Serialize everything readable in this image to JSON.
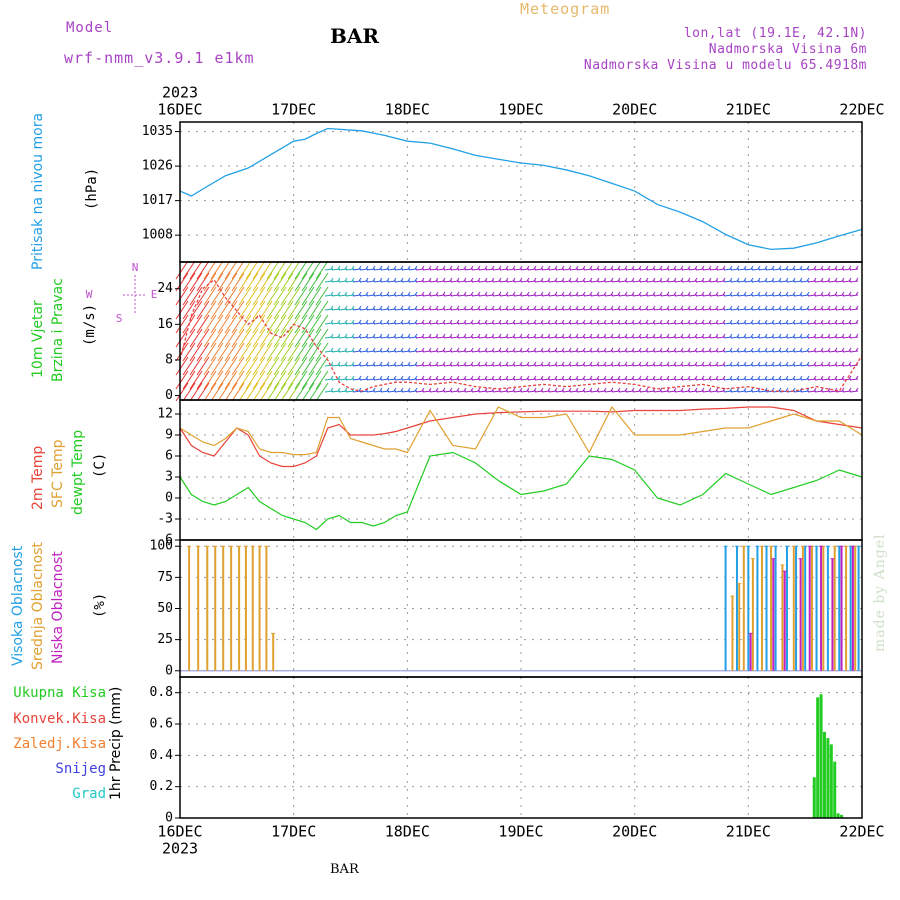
{
  "header": {
    "model_label": "Model",
    "model_name": "wrf-nmm_v3.9.1 e1km",
    "station": "BAR",
    "product": "Meteogram",
    "lonlat": "lon,lat (19.1E, 42.1N)",
    "elevation": "Nadmorska Visina 6m",
    "model_elevation": "Nadmorska Visina u modelu 65.4918m"
  },
  "footer_station": "BAR",
  "watermark": "made by Angel",
  "colors": {
    "pressure": "#22a0e6",
    "temp2m": "#e8443a",
    "sfc": "#e0a030",
    "dewpt": "#22cc22",
    "high_cloud": "#22a0e6",
    "mid_cloud": "#e0a030",
    "low_cloud": "#c020c0",
    "precip_total": "#22cc22",
    "precip_conv": "#e8443a",
    "precip_frz": "#f08030",
    "precip_snow": "#4040e0",
    "precip_grad": "#22c8c8",
    "wind_speed": "#c020c0"
  },
  "chart_data": [
    {
      "type": "line",
      "panel": "pressure",
      "ylabel_main": "Pritisak na nivou mora",
      "ylabel_unit": "(hPa)",
      "x_top_year": "2023",
      "x_bottom_year": "2023",
      "x_ticks": [
        "16DEC",
        "17DEC",
        "18DEC",
        "19DEC",
        "20DEC",
        "21DEC",
        "22DEC"
      ],
      "xlim_days": [
        0,
        6
      ],
      "ylim": [
        1001,
        1037.5
      ],
      "y_ticks": [
        1008,
        1017,
        1026,
        1035
      ],
      "series": [
        {
          "x": [
            0,
            0.1,
            0.2,
            0.4,
            0.6,
            0.8,
            1.0,
            1.1,
            1.2,
            1.3,
            1.4,
            1.5,
            1.6,
            1.8,
            2.0,
            2.2,
            2.4,
            2.6,
            2.8,
            3.0,
            3.2,
            3.4,
            3.6,
            3.8,
            4.0,
            4.2,
            4.4,
            4.6,
            4.8,
            5.0,
            5.2,
            5.4,
            5.6,
            5.8,
            6.0
          ],
          "y": [
            1019.5,
            1018.2,
            1020,
            1023.5,
            1025.5,
            1029,
            1032.5,
            1033,
            1034.5,
            1035.8,
            1035.6,
            1035.4,
            1035.2,
            1034,
            1032.5,
            1032,
            1030.5,
            1028.8,
            1027.8,
            1026.8,
            1026.2,
            1025,
            1023.5,
            1021.5,
            1019.5,
            1016,
            1014,
            1011.5,
            1008.2,
            1005.5,
            1004.3,
            1004.6,
            1006,
            1007.8,
            1009.5
          ]
        }
      ]
    },
    {
      "type": "line",
      "panel": "wind",
      "ylabel_main": "10m Vjetar",
      "ylabel_main2": "Brzina i Pravac",
      "ylabel_unit": "(m/s)",
      "compass": {
        "n": "N",
        "w": "W",
        "e": "E",
        "s": "S"
      },
      "ylim": [
        -1,
        30
      ],
      "y_ticks": [
        0,
        8,
        16,
        24
      ],
      "speed_x": [
        0,
        0.1,
        0.2,
        0.3,
        0.4,
        0.5,
        0.6,
        0.7,
        0.8,
        0.9,
        1.0,
        1.1,
        1.2,
        1.3,
        1.4,
        1.5,
        1.6,
        1.7,
        1.8,
        1.9,
        2.0,
        2.2,
        2.4,
        2.6,
        2.8,
        3.0,
        3.2,
        3.4,
        3.6,
        3.8,
        4.0,
        4.2,
        4.4,
        4.6,
        4.8,
        5.0,
        5.2,
        5.4,
        5.6,
        5.8,
        5.9,
        6.0
      ],
      "speed_y": [
        8,
        18,
        24,
        26,
        22,
        19,
        16,
        18,
        14,
        13,
        16,
        15,
        11,
        8,
        3,
        1.5,
        1,
        2,
        2.5,
        3,
        3,
        2.5,
        3,
        2,
        1.5,
        2,
        2.5,
        2,
        2.5,
        3,
        2.5,
        1.5,
        2,
        2.5,
        1.5,
        2,
        1,
        1,
        2,
        1,
        5,
        9
      ]
    },
    {
      "type": "line",
      "panel": "temperature",
      "ylabel_a": "2m Temp",
      "ylabel_b": "SFC Temp",
      "ylabel_c": "dewpt Temp",
      "ylabel_unit": "(C)",
      "ylim": [
        -6,
        14
      ],
      "y_ticks": [
        -6,
        -3,
        0,
        3,
        6,
        9,
        12
      ],
      "x": [
        0,
        0.1,
        0.2,
        0.3,
        0.4,
        0.5,
        0.6,
        0.7,
        0.8,
        0.9,
        1.0,
        1.1,
        1.2,
        1.3,
        1.4,
        1.5,
        1.6,
        1.7,
        1.8,
        1.9,
        2.0,
        2.2,
        2.4,
        2.6,
        2.8,
        3.0,
        3.2,
        3.4,
        3.6,
        3.8,
        4.0,
        4.2,
        4.4,
        4.6,
        4.8,
        5.0,
        5.2,
        5.4,
        5.6,
        5.8,
        6.0
      ],
      "series": [
        {
          "name": "2m Temp",
          "y": [
            10,
            7.5,
            6.5,
            6,
            8,
            10,
            9,
            6,
            5,
            4.5,
            4.5,
            5,
            6,
            10,
            10.5,
            9,
            9,
            9,
            9.2,
            9.5,
            10,
            11,
            11.5,
            12,
            12.2,
            12.3,
            12.4,
            12.4,
            12.4,
            12.3,
            12.5,
            12.5,
            12.5,
            12.7,
            12.8,
            13,
            13,
            12.5,
            11,
            10.5,
            10
          ]
        },
        {
          "name": "SFC Temp",
          "y": [
            10,
            9,
            8,
            7.5,
            8.5,
            10,
            9.5,
            7,
            6.5,
            6.5,
            6.2,
            6.2,
            6.5,
            11.5,
            11.5,
            8.5,
            8,
            7.5,
            7,
            7,
            6.5,
            12.5,
            7.5,
            7,
            13,
            11.5,
            11.5,
            12,
            6.5,
            13,
            9,
            9,
            9,
            9.5,
            10,
            10,
            11,
            12,
            11,
            11,
            9
          ]
        },
        {
          "name": "dewpt Temp",
          "y": [
            3,
            0.5,
            -0.5,
            -1,
            -0.5,
            0.5,
            1.5,
            -0.5,
            -1.5,
            -2.5,
            -3,
            -3.5,
            -4.5,
            -3,
            -2.5,
            -3.5,
            -3.5,
            -4,
            -3.5,
            -2.5,
            -2,
            6,
            6.5,
            5,
            2.5,
            0.5,
            1,
            2,
            6,
            5.5,
            4,
            0,
            -1,
            0.5,
            3.5,
            2,
            0.5,
            1.5,
            2.5,
            4,
            3
          ]
        }
      ]
    },
    {
      "type": "bar",
      "panel": "clouds",
      "ylabel_a": "Visoka Oblacnost",
      "ylabel_b": "Srednja Oblacnost",
      "ylabel_c": "Niska Oblacnost",
      "ylabel_unit": "(%)",
      "ylim": [
        -5,
        105
      ],
      "y_ticks": [
        0,
        25,
        50,
        75,
        100
      ],
      "series": [
        {
          "name": "Srednja Oblacnost",
          "x": [
            0.08,
            0.16,
            0.24,
            0.31,
            0.38,
            0.45,
            0.52,
            0.58,
            0.64,
            0.7,
            0.76,
            0.82
          ],
          "values": [
            100,
            100,
            100,
            100,
            100,
            100,
            100,
            100,
            100,
            100,
            100,
            30
          ]
        },
        {
          "name": "Visoka Oblacnost",
          "x": [
            4.8,
            4.9,
            5.0,
            5.08,
            5.16,
            5.24,
            5.34,
            5.42,
            5.5,
            5.6,
            5.7,
            5.8,
            5.9,
            5.97
          ],
          "values": [
            100,
            100,
            100,
            100,
            100,
            100,
            100,
            100,
            100,
            100,
            100,
            100,
            100,
            100
          ]
        },
        {
          "name": "Srednja Oblacnost",
          "x": [
            4.86,
            4.92,
            4.96,
            5.04,
            5.12,
            5.2,
            5.3,
            5.4,
            5.48,
            5.56,
            5.66,
            5.76,
            5.86,
            5.94
          ],
          "values": [
            60,
            70,
            100,
            90,
            100,
            100,
            85,
            100,
            100,
            100,
            100,
            100,
            100,
            100
          ]
        },
        {
          "name": "Niska Oblacnost",
          "x": [
            5.02,
            5.22,
            5.32,
            5.46,
            5.54,
            5.64,
            5.74,
            5.82,
            5.92
          ],
          "values": [
            30,
            90,
            80,
            90,
            100,
            100,
            90,
            100,
            100
          ]
        }
      ]
    },
    {
      "type": "bar",
      "panel": "precip",
      "ylabel_unit": "1hr Precip (mm)",
      "legend": [
        "Ukupna Kisa",
        "Konvek.Kisa",
        "Zaledj.Kisa",
        "Snijeg",
        "Grad"
      ],
      "ylim": [
        0,
        0.9
      ],
      "y_ticks": [
        0,
        0.2,
        0.4,
        0.6,
        0.8
      ],
      "x": [
        5.58,
        5.61,
        5.64,
        5.67,
        5.7,
        5.73,
        5.76,
        5.79,
        5.82
      ],
      "values": [
        0.26,
        0.77,
        0.79,
        0.55,
        0.51,
        0.47,
        0.36,
        0.03,
        0.02
      ]
    }
  ]
}
